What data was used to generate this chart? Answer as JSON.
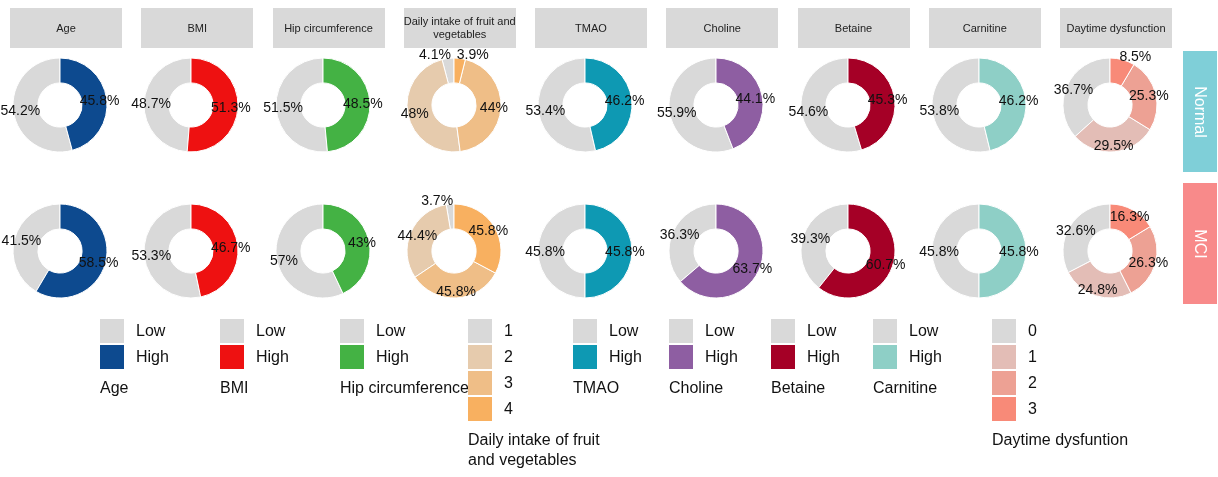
{
  "chart_data": [
    {
      "type": "donut",
      "title": "Age",
      "categories": [
        "Low",
        "High"
      ],
      "colors": [
        "#d9d9d9",
        "#0d4a8f"
      ],
      "legend": "bottom",
      "legend_title": "Age",
      "series": [
        {
          "values": [
            54.2,
            45.8
          ],
          "value_labels": [
            "54.2%",
            "45.8%"
          ]
        },
        {
          "values": [
            41.5,
            58.5
          ],
          "value_labels": [
            "41.5%",
            "58.5%"
          ]
        }
      ]
    },
    {
      "type": "donut",
      "title": "BMI",
      "categories": [
        "Low",
        "High"
      ],
      "colors": [
        "#d9d9d9",
        "#ee1111"
      ],
      "legend": "bottom",
      "legend_title": "BMI",
      "series": [
        {
          "values": [
            48.7,
            51.3
          ],
          "value_labels": [
            "48.7%",
            "51.3%"
          ]
        },
        {
          "values": [
            53.3,
            46.7
          ],
          "value_labels": [
            "53.3%",
            "46.7%"
          ]
        }
      ]
    },
    {
      "type": "donut",
      "title": "Hip circumference",
      "categories": [
        "Low",
        "High"
      ],
      "colors": [
        "#d9d9d9",
        "#44b244"
      ],
      "legend": "bottom",
      "legend_title": "Hip circumference",
      "series": [
        {
          "values": [
            51.5,
            48.5
          ],
          "value_labels": [
            "51.5%",
            "48.5%"
          ]
        },
        {
          "values": [
            57,
            43
          ],
          "value_labels": [
            "57%",
            "43%"
          ]
        }
      ]
    },
    {
      "type": "donut",
      "title": "Daily intake of fruit and vegetables",
      "categories": [
        "1",
        "2",
        "3",
        "4"
      ],
      "colors": [
        "#d9d9d9",
        "#e6cbad",
        "#efbe87",
        "#f8b060"
      ],
      "legend": "bottom",
      "legend_title": "Daily intake of fruit and vegetables",
      "series": [
        {
          "values": [
            4.1,
            48,
            44,
            3.9
          ],
          "value_labels": [
            "4.1%",
            "48%",
            "44%",
            "3.9%"
          ]
        },
        {
          "values": [
            3.7,
            44.4,
            45.8,
            45.8
          ],
          "value_labels": [
            "3.7%",
            "44.4%",
            "45.8%",
            "45.8%"
          ]
        }
      ]
    },
    {
      "type": "donut",
      "title": "TMAO",
      "categories": [
        "Low",
        "High"
      ],
      "colors": [
        "#d9d9d9",
        "#0e99b3"
      ],
      "legend": "bottom",
      "legend_title": "TMAO",
      "series": [
        {
          "values": [
            53.4,
            46.2
          ],
          "value_labels": [
            "53.4%",
            "46.2%"
          ]
        },
        {
          "values": [
            45.8,
            45.8
          ],
          "value_labels": [
            "45.8%",
            "45.8%"
          ]
        }
      ]
    },
    {
      "type": "donut",
      "title": "Choline",
      "categories": [
        "Low",
        "High"
      ],
      "colors": [
        "#d9d9d9",
        "#8e5ea2"
      ],
      "legend": "bottom",
      "legend_title": "Choline",
      "series": [
        {
          "values": [
            55.9,
            44.1
          ],
          "value_labels": [
            "55.9%",
            "44.1%"
          ]
        },
        {
          "values": [
            36.3,
            63.7
          ],
          "value_labels": [
            "36.3%",
            "63.7%"
          ]
        }
      ]
    },
    {
      "type": "donut",
      "title": "Betaine",
      "categories": [
        "Low",
        "High"
      ],
      "colors": [
        "#d9d9d9",
        "#a50026"
      ],
      "legend": "bottom",
      "legend_title": "Betaine",
      "series": [
        {
          "values": [
            54.6,
            45.3
          ],
          "value_labels": [
            "54.6%",
            "45.3%"
          ]
        },
        {
          "values": [
            39.3,
            60.7
          ],
          "value_labels": [
            "39.3%",
            "60.7%"
          ]
        }
      ]
    },
    {
      "type": "donut",
      "title": "Carnitine",
      "categories": [
        "Low",
        "High"
      ],
      "colors": [
        "#d9d9d9",
        "#8ecfc6"
      ],
      "legend": "bottom",
      "legend_title": "Carnitine",
      "series": [
        {
          "values": [
            53.8,
            46.2
          ],
          "value_labels": [
            "53.8%",
            "46.2%"
          ]
        },
        {
          "values": [
            45.8,
            45.8
          ],
          "value_labels": [
            "45.8%",
            "45.8%"
          ]
        }
      ]
    },
    {
      "type": "donut",
      "title": "Daytime dysfunction",
      "categories": [
        "0",
        "1",
        "2",
        "3"
      ],
      "colors": [
        "#d9d9d9",
        "#e3bdb6",
        "#eda194",
        "#f88a78"
      ],
      "legend": "bottom",
      "legend_title": "Daytime dysfuntion",
      "series": [
        {
          "name": "Normal",
          "values": [
            36.7,
            29.5,
            25.3,
            8.5
          ],
          "value_labels": [
            "36.7%",
            "29.5%",
            "25.3%",
            "8.5%"
          ]
        },
        {
          "name": "MCI",
          "values": [
            32.6,
            24.8,
            26.3,
            16.3
          ],
          "value_labels": [
            "32.6%",
            "24.8%",
            "26.3%",
            "16.3%"
          ]
        }
      ]
    }
  ]
}
